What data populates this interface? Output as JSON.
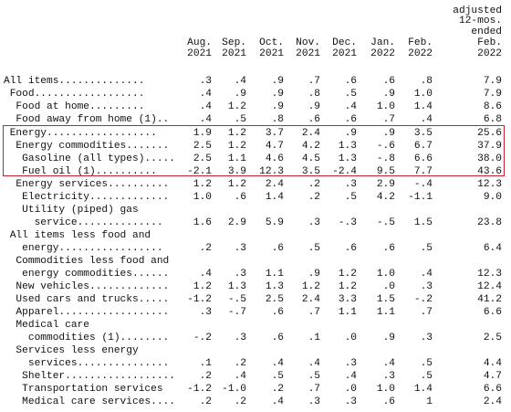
{
  "columns": [
    [
      "",
      "",
      "Aug.",
      "2021"
    ],
    [
      "",
      "",
      "Sep.",
      "2021"
    ],
    [
      "",
      "",
      "Oct.",
      "2021"
    ],
    [
      "",
      "",
      "Nov.",
      "2021"
    ],
    [
      "",
      "",
      "Dec.",
      "2021"
    ],
    [
      "",
      "",
      "Jan.",
      "2022"
    ],
    [
      "",
      "",
      "Feb.",
      "2022"
    ],
    [
      "adjusted",
      "12-mos.",
      "ended",
      "Feb.",
      "2022"
    ]
  ],
  "rows": [
    {
      "label": "All items..............",
      "values": [
        ".3",
        ".4",
        ".9",
        ".7",
        ".6",
        ".6",
        ".8",
        "7.9"
      ]
    },
    {
      "label": " Food..................",
      "values": [
        ".4",
        ".9",
        ".9",
        ".8",
        ".5",
        ".9",
        "1.0",
        "7.9"
      ]
    },
    {
      "label": "  Food at home.........",
      "values": [
        ".4",
        "1.2",
        ".9",
        ".9",
        ".4",
        "1.0",
        "1.4",
        "8.6"
      ]
    },
    {
      "label": "  Food away from home (1)..",
      "values": [
        ".4",
        ".5",
        ".8",
        ".6",
        ".6",
        ".7",
        ".4",
        "6.8"
      ]
    },
    {
      "label": " Energy..................",
      "values": [
        "1.9",
        "1.2",
        "3.7",
        "2.4",
        ".9",
        ".9",
        "3.5",
        "25.6"
      ]
    },
    {
      "label": "  Energy commodities.......",
      "values": [
        "2.5",
        "1.2",
        "4.7",
        "4.2",
        "1.3",
        "-.6",
        "6.7",
        "37.9"
      ]
    },
    {
      "label": "   Gasoline (all types).....",
      "values": [
        "2.5",
        "1.1",
        "4.6",
        "4.5",
        "1.3",
        "-.8",
        "6.6",
        "38.0"
      ]
    },
    {
      "label": "   Fuel oil (1)..........",
      "values": [
        "-2.1",
        "3.9",
        "12.3",
        "3.5",
        "-2.4",
        "9.5",
        "7.7",
        "43.6"
      ]
    },
    {
      "label": "  Energy services..........",
      "values": [
        "1.2",
        "1.2",
        "2.4",
        ".2",
        ".3",
        "2.9",
        "-.4",
        "12.3"
      ]
    },
    {
      "label": "   Electricity.............",
      "values": [
        "1.0",
        ".6",
        "1.4",
        ".2",
        ".5",
        "4.2",
        "-1.1",
        "9.0"
      ]
    },
    {
      "label": "   Utility (piped) gas",
      "values": [
        "",
        "",
        "",
        "",
        "",
        "",
        "",
        ""
      ]
    },
    {
      "label": "     service..............",
      "values": [
        "1.6",
        "2.9",
        "5.9",
        ".3",
        "-.3",
        "-.5",
        "1.5",
        "23.8"
      ]
    },
    {
      "label": " All items less food and",
      "values": [
        "",
        "",
        "",
        "",
        "",
        "",
        "",
        ""
      ]
    },
    {
      "label": "   energy.................",
      "values": [
        ".2",
        ".3",
        ".6",
        ".5",
        ".6",
        ".6",
        ".5",
        "6.4"
      ]
    },
    {
      "label": "  Commodities less food and",
      "values": [
        "",
        "",
        "",
        "",
        "",
        "",
        "",
        ""
      ]
    },
    {
      "label": "   energy commodities......",
      "values": [
        ".4",
        ".3",
        "1.1",
        ".9",
        "1.2",
        "1.0",
        ".4",
        "12.3"
      ]
    },
    {
      "label": "  New vehicles.............",
      "values": [
        "1.2",
        "1.3",
        "1.3",
        "1.2",
        "1.2",
        ".0",
        ".3",
        "12.4"
      ]
    },
    {
      "label": "  Used cars and trucks.....",
      "values": [
        "-1.2",
        "-.5",
        "2.5",
        "2.4",
        "3.3",
        "1.5",
        "-.2",
        "41.2"
      ]
    },
    {
      "label": "  Apparel..................",
      "values": [
        ".3",
        "-.7",
        ".6",
        ".7",
        "1.1",
        "1.1",
        ".7",
        "6.6"
      ]
    },
    {
      "label": "  Medical care",
      "values": [
        "",
        "",
        "",
        "",
        "",
        "",
        "",
        ""
      ]
    },
    {
      "label": "    commodities (1)........",
      "values": [
        "-.2",
        ".3",
        ".6",
        ".1",
        ".0",
        ".9",
        ".3",
        "2.5"
      ]
    },
    {
      "label": "  Services less energy",
      "values": [
        "",
        "",
        "",
        "",
        "",
        "",
        "",
        ""
      ]
    },
    {
      "label": "    services...............",
      "values": [
        ".1",
        ".2",
        ".4",
        ".4",
        ".3",
        ".4",
        ".5",
        "4.4"
      ]
    },
    {
      "label": "   Shelter..................",
      "values": [
        ".2",
        ".4",
        ".5",
        ".5",
        ".4",
        ".3",
        ".5",
        "4.7"
      ]
    },
    {
      "label": "   Transportation services",
      "values": [
        "-1.2",
        "-1.0",
        ".2",
        ".7",
        ".0",
        "1.0",
        "1.4",
        "6.6"
      ]
    },
    {
      "label": "   Medical care services....",
      "values": [
        ".2",
        ".2",
        ".4",
        ".3",
        ".3",
        ".6",
        "1",
        "2.4"
      ]
    }
  ]
}
